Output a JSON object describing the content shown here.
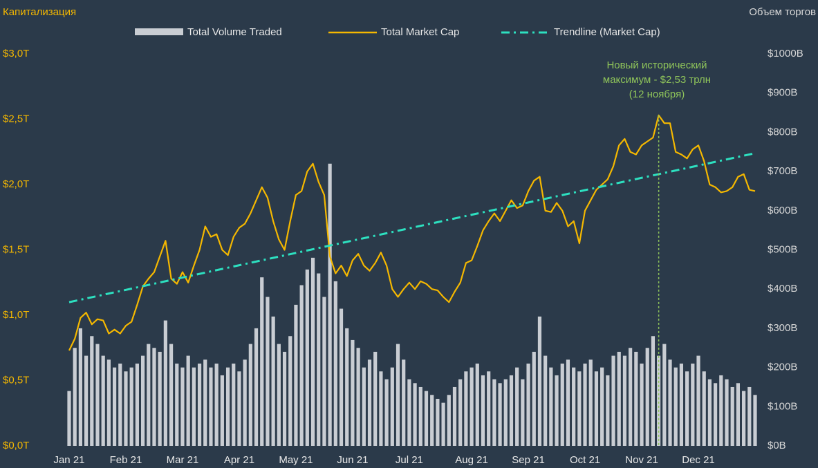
{
  "chart_data": {
    "type": "combo",
    "ylabel": "Капитализация",
    "y2label": "Объем торгов",
    "categories": [
      "Jan 21",
      null,
      null,
      null,
      null,
      null,
      null,
      null,
      null,
      null,
      "Feb 21",
      null,
      null,
      null,
      null,
      null,
      null,
      null,
      null,
      null,
      "Mar 21",
      null,
      null,
      null,
      null,
      null,
      null,
      null,
      null,
      null,
      "Apr 21",
      null,
      null,
      null,
      null,
      null,
      null,
      null,
      null,
      null,
      "May 21",
      null,
      null,
      null,
      null,
      null,
      null,
      null,
      null,
      null,
      "Jun 21",
      null,
      null,
      null,
      null,
      null,
      null,
      null,
      null,
      null,
      "Jul 21",
      null,
      null,
      null,
      null,
      null,
      null,
      null,
      null,
      null,
      null,
      "Aug 21",
      null,
      null,
      null,
      null,
      null,
      null,
      null,
      null,
      null,
      "Sep 21",
      null,
      null,
      null,
      null,
      null,
      null,
      null,
      null,
      null,
      "Oct 21",
      null,
      null,
      null,
      null,
      null,
      null,
      null,
      null,
      null,
      "Nov 21",
      null,
      null,
      null,
      null,
      null,
      null,
      null,
      null,
      null,
      "Dec 21",
      null,
      null,
      null,
      null,
      null,
      null,
      null,
      null,
      null,
      null
    ],
    "series": [
      {
        "name": "Total Volume Traded",
        "type": "bar",
        "axis": "y2",
        "color": "#c9cdd3",
        "values": [
          140,
          250,
          300,
          230,
          280,
          260,
          230,
          220,
          200,
          210,
          190,
          200,
          210,
          230,
          260,
          250,
          240,
          320,
          260,
          210,
          200,
          230,
          200,
          210,
          220,
          200,
          210,
          180,
          200,
          210,
          190,
          220,
          260,
          300,
          430,
          380,
          330,
          260,
          240,
          280,
          360,
          410,
          450,
          480,
          440,
          380,
          720,
          420,
          350,
          300,
          270,
          250,
          200,
          220,
          240,
          190,
          170,
          200,
          260,
          220,
          170,
          160,
          150,
          140,
          130,
          120,
          110,
          130,
          150,
          170,
          190,
          200,
          210,
          180,
          190,
          170,
          160,
          170,
          180,
          200,
          170,
          210,
          240,
          330,
          230,
          200,
          180,
          210,
          220,
          200,
          190,
          210,
          220,
          190,
          200,
          180,
          230,
          240,
          230,
          250,
          240,
          210,
          250,
          280,
          230,
          260,
          220,
          200,
          210,
          190,
          210,
          230,
          190,
          170,
          160,
          180,
          170,
          150,
          160,
          140,
          150,
          130
        ]
      },
      {
        "name": "Total Market Cap",
        "type": "line",
        "color": "#f5b800",
        "values": [
          0.73,
          0.82,
          0.98,
          1.02,
          0.93,
          0.97,
          0.96,
          0.86,
          0.89,
          0.86,
          0.92,
          0.95,
          1.08,
          1.22,
          1.28,
          1.33,
          1.45,
          1.57,
          1.28,
          1.24,
          1.33,
          1.25,
          1.38,
          1.5,
          1.68,
          1.6,
          1.62,
          1.5,
          1.46,
          1.6,
          1.67,
          1.7,
          1.78,
          1.88,
          1.98,
          1.9,
          1.72,
          1.58,
          1.5,
          1.72,
          1.92,
          1.95,
          2.1,
          2.16,
          2.02,
          1.92,
          1.45,
          1.32,
          1.38,
          1.3,
          1.42,
          1.47,
          1.38,
          1.34,
          1.4,
          1.48,
          1.38,
          1.2,
          1.14,
          1.2,
          1.25,
          1.2,
          1.26,
          1.24,
          1.2,
          1.19,
          1.14,
          1.1,
          1.18,
          1.25,
          1.4,
          1.42,
          1.53,
          1.65,
          1.72,
          1.78,
          1.72,
          1.8,
          1.88,
          1.82,
          1.84,
          1.95,
          2.03,
          2.06,
          1.8,
          1.79,
          1.86,
          1.8,
          1.68,
          1.72,
          1.55,
          1.8,
          1.88,
          1.96,
          2.0,
          2.04,
          2.14,
          2.3,
          2.35,
          2.25,
          2.23,
          2.3,
          2.33,
          2.36,
          2.53,
          2.47,
          2.47,
          2.25,
          2.23,
          2.2,
          2.27,
          2.3,
          2.18,
          2.0,
          1.98,
          1.94,
          1.95,
          1.98,
          2.06,
          2.08,
          1.96,
          1.95
        ]
      }
    ],
    "trendline": {
      "name": "Trendline (Market Cap)",
      "color": "#2de0c0",
      "values": [
        1.1,
        2.24
      ]
    },
    "annotation": [
      "Новый исторический",
      "максимум - $2,53 трлн",
      "(12 ноября)"
    ],
    "annotation_color": "#8fc45a",
    "ylim": [
      0,
      3
    ],
    "yticks": [
      {
        "value": 0,
        "label": "$0,0T"
      },
      {
        "value": 0.5,
        "label": "$0,5T"
      },
      {
        "value": 1,
        "label": "$1,0T"
      },
      {
        "value": 1.5,
        "label": "$1,5T"
      },
      {
        "value": 2,
        "label": "$2,0T"
      },
      {
        "value": 2.5,
        "label": "$2,5T"
      },
      {
        "value": 3,
        "label": "$3,0T"
      }
    ],
    "y2lim": [
      0,
      1000
    ],
    "y2ticks": [
      {
        "value": 0,
        "label": "$0B"
      },
      {
        "value": 100,
        "label": "$100B"
      },
      {
        "value": 200,
        "label": "$200B"
      },
      {
        "value": 300,
        "label": "$300B"
      },
      {
        "value": 400,
        "label": "$400B"
      },
      {
        "value": 500,
        "label": "$500B"
      },
      {
        "value": 600,
        "label": "$600B"
      },
      {
        "value": 700,
        "label": "$700B"
      },
      {
        "value": 800,
        "label": "$800B"
      },
      {
        "value": 900,
        "label": "$900B"
      },
      {
        "value": 1000,
        "label": "$1000B"
      }
    ],
    "legend": "top"
  }
}
